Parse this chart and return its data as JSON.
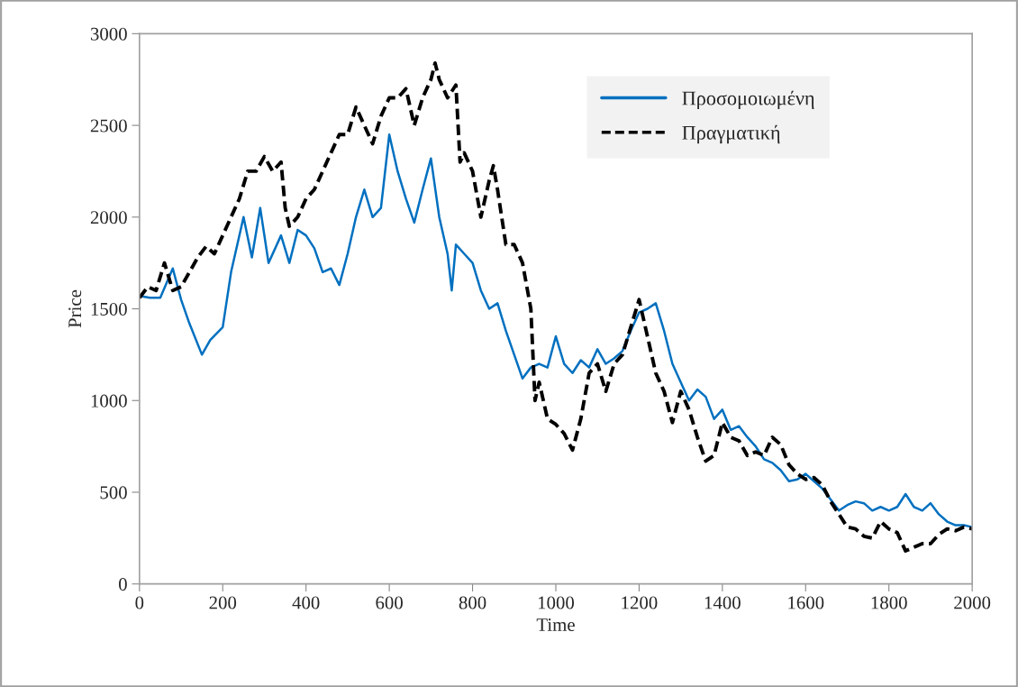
{
  "chart_data": {
    "type": "line",
    "xlabel": "Time",
    "ylabel": "Price",
    "xlim": [
      0,
      2000
    ],
    "xticks": [
      0,
      200,
      400,
      600,
      800,
      1000,
      1200,
      1400,
      1600,
      1800,
      2000
    ],
    "ylim": [
      0,
      3000
    ],
    "yticks": [
      0,
      500,
      1000,
      1500,
      2000,
      2500,
      3000
    ],
    "grid": false,
    "legend": "top right",
    "series": [
      {
        "name": "Προσομοιωμένη",
        "color": "#0070c0",
        "line_style": "solid",
        "x": [
          0,
          25,
          50,
          80,
          100,
          120,
          150,
          170,
          200,
          220,
          250,
          270,
          290,
          310,
          340,
          360,
          380,
          400,
          420,
          440,
          460,
          480,
          500,
          520,
          540,
          560,
          580,
          600,
          620,
          640,
          660,
          680,
          700,
          720,
          740,
          750,
          760,
          780,
          800,
          820,
          840,
          860,
          880,
          900,
          920,
          940,
          960,
          980,
          1000,
          1020,
          1040,
          1060,
          1080,
          1100,
          1120,
          1140,
          1160,
          1180,
          1200,
          1220,
          1240,
          1260,
          1280,
          1300,
          1320,
          1340,
          1360,
          1380,
          1400,
          1420,
          1440,
          1460,
          1480,
          1500,
          1520,
          1540,
          1560,
          1580,
          1600,
          1620,
          1640,
          1660,
          1680,
          1700,
          1720,
          1740,
          1760,
          1780,
          1800,
          1820,
          1840,
          1860,
          1880,
          1900,
          1920,
          1940,
          1960,
          1980,
          2000
        ],
        "values": [
          1570,
          1560,
          1560,
          1720,
          1550,
          1420,
          1250,
          1330,
          1400,
          1700,
          2000,
          1780,
          2050,
          1750,
          1900,
          1750,
          1930,
          1900,
          1830,
          1700,
          1720,
          1630,
          1800,
          2000,
          2150,
          2000,
          2050,
          2450,
          2250,
          2100,
          1970,
          2150,
          2320,
          2000,
          1800,
          1600,
          1850,
          1800,
          1750,
          1600,
          1500,
          1530,
          1380,
          1250,
          1120,
          1180,
          1200,
          1180,
          1350,
          1200,
          1150,
          1220,
          1180,
          1280,
          1200,
          1230,
          1270,
          1380,
          1480,
          1500,
          1530,
          1380,
          1200,
          1100,
          1000,
          1060,
          1020,
          900,
          950,
          840,
          860,
          800,
          750,
          680,
          660,
          620,
          560,
          570,
          600,
          560,
          520,
          460,
          400,
          430,
          450,
          440,
          400,
          420,
          400,
          420,
          490,
          420,
          400,
          440,
          380,
          340,
          320,
          320,
          310
        ]
      },
      {
        "name": "Πραγματική",
        "color": "#000000",
        "line_style": "dashed",
        "x": [
          0,
          20,
          40,
          60,
          80,
          100,
          120,
          140,
          160,
          180,
          200,
          220,
          240,
          260,
          280,
          300,
          320,
          340,
          350,
          360,
          380,
          400,
          420,
          440,
          460,
          480,
          500,
          520,
          540,
          560,
          580,
          600,
          620,
          640,
          660,
          680,
          700,
          710,
          720,
          740,
          760,
          770,
          780,
          800,
          820,
          840,
          850,
          860,
          880,
          900,
          920,
          940,
          950,
          960,
          980,
          1000,
          1020,
          1040,
          1060,
          1080,
          1100,
          1120,
          1140,
          1160,
          1180,
          1200,
          1220,
          1240,
          1260,
          1280,
          1300,
          1320,
          1340,
          1360,
          1380,
          1400,
          1420,
          1440,
          1460,
          1480,
          1500,
          1520,
          1540,
          1560,
          1580,
          1600,
          1620,
          1640,
          1660,
          1680,
          1700,
          1720,
          1740,
          1760,
          1780,
          1800,
          1820,
          1840,
          1860,
          1880,
          1900,
          1920,
          1940,
          1960,
          1980,
          2000
        ],
        "values": [
          1560,
          1620,
          1600,
          1750,
          1600,
          1620,
          1700,
          1780,
          1840,
          1800,
          1900,
          2000,
          2100,
          2250,
          2250,
          2330,
          2250,
          2300,
          2050,
          1950,
          2000,
          2100,
          2150,
          2250,
          2350,
          2450,
          2450,
          2600,
          2500,
          2400,
          2550,
          2650,
          2650,
          2700,
          2500,
          2650,
          2750,
          2840,
          2750,
          2650,
          2720,
          2300,
          2350,
          2250,
          2000,
          2200,
          2280,
          2150,
          1850,
          1850,
          1750,
          1500,
          1000,
          1100,
          900,
          870,
          820,
          730,
          900,
          1150,
          1200,
          1050,
          1200,
          1250,
          1400,
          1550,
          1350,
          1150,
          1050,
          880,
          1050,
          950,
          800,
          670,
          700,
          880,
          800,
          780,
          700,
          720,
          700,
          800,
          760,
          650,
          600,
          570,
          580,
          540,
          450,
          380,
          310,
          300,
          260,
          250,
          340,
          300,
          280,
          180,
          200,
          220,
          220,
          270,
          300,
          290,
          310,
          300
        ]
      }
    ]
  }
}
